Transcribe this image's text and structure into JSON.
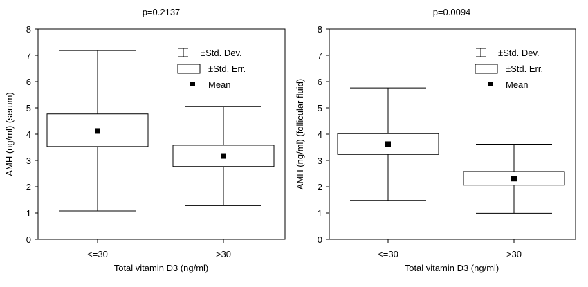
{
  "chart_data": [
    {
      "type": "box",
      "title": "p=0.2137",
      "xlabel": "Total vitamin D3 (ng/ml)",
      "ylabel": "AMH (ng/ml) (serum)",
      "ylim": [
        0,
        8
      ],
      "yticks": [
        "0",
        "1",
        "2",
        "3",
        "4",
        "5",
        "6",
        "7",
        "8"
      ],
      "categories": [
        "<=30",
        ">30"
      ],
      "groups": [
        {
          "category": "<=30",
          "mean": 4.12,
          "se_low": 3.53,
          "se_high": 4.77,
          "sd_low": 1.08,
          "sd_high": 7.18
        },
        {
          "category": ">30",
          "mean": 3.17,
          "se_low": 2.77,
          "se_high": 3.58,
          "sd_low": 1.28,
          "sd_high": 5.06
        }
      ],
      "legend": {
        "position": "top-right",
        "items": [
          {
            "symbol": "whisker",
            "label": "±Std. Dev."
          },
          {
            "symbol": "box",
            "label": "±Std. Err."
          },
          {
            "symbol": "square",
            "label": "Mean"
          }
        ]
      },
      "grid": false
    },
    {
      "type": "box",
      "title": "p=0.0094",
      "xlabel": "Total vitamin D3 (ng/ml)",
      "ylabel": "AMH (ng/ml) (follicular fluid)",
      "ylim": [
        0,
        8
      ],
      "yticks": [
        "0",
        "1",
        "2",
        "3",
        "4",
        "5",
        "6",
        "7",
        "8"
      ],
      "categories": [
        "<=30",
        ">30"
      ],
      "groups": [
        {
          "category": "<=30",
          "mean": 3.62,
          "se_low": 3.23,
          "se_high": 4.02,
          "sd_low": 1.48,
          "sd_high": 5.76
        },
        {
          "category": ">30",
          "mean": 2.31,
          "se_low": 2.06,
          "se_high": 2.58,
          "sd_low": 0.99,
          "sd_high": 3.62
        }
      ],
      "legend": {
        "position": "top-right",
        "items": [
          {
            "symbol": "whisker",
            "label": "±Std. Dev."
          },
          {
            "symbol": "box",
            "label": "±Std. Err."
          },
          {
            "symbol": "square",
            "label": "Mean"
          }
        ]
      },
      "grid": false
    }
  ]
}
